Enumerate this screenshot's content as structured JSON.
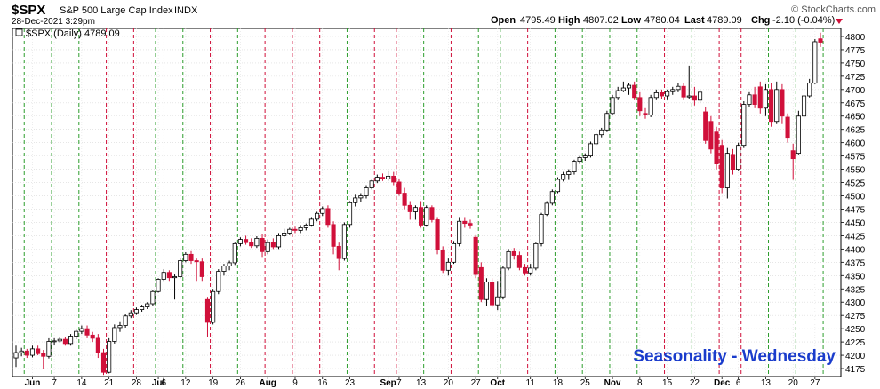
{
  "header": {
    "symbol": "$SPX",
    "name": "S&P 500 Large Cap Index",
    "exchange": "INDX",
    "date": "28-Dec-2021 3:29pm",
    "brand": "© StockCharts.com",
    "quote": {
      "open_label": "Open",
      "open": "4795.49",
      "high_label": "High",
      "high": "4807.02",
      "low_label": "Low",
      "low": "4780.04",
      "last_label": "Last",
      "last": "4789.09",
      "chg_label": "Chg",
      "chg": "-2.10 (-0.04%)"
    }
  },
  "legend": {
    "label": "$SPX (Daily) 4789.09"
  },
  "annotation": "Seasonality - Wednesday",
  "colors": {
    "down": "#d0103a",
    "up": "#ffffff",
    "green_line": "#2e9e2e",
    "red_line": "#d0103a",
    "annotation": "#1a3ccc"
  },
  "chart_data": {
    "type": "candlestick",
    "title": "$SPX S&P 500 Large Cap Index INDX",
    "ylim": [
      4160,
      4815
    ],
    "y_ticks": [
      4175,
      4200,
      4225,
      4250,
      4275,
      4300,
      4325,
      4350,
      4375,
      4400,
      4425,
      4450,
      4475,
      4500,
      4525,
      4550,
      4575,
      4600,
      4625,
      4650,
      4675,
      4700,
      4725,
      4750,
      4775,
      4800
    ],
    "x_tick_labels": [
      {
        "label": "Jun",
        "bar": 3,
        "bold": true
      },
      {
        "label": "7",
        "bar": 7
      },
      {
        "label": "14",
        "bar": 12
      },
      {
        "label": "21",
        "bar": 17
      },
      {
        "label": "28",
        "bar": 22
      },
      {
        "label": "Jul",
        "bar": 26,
        "bold": true
      },
      {
        "label": "6",
        "bar": 27
      },
      {
        "label": "12",
        "bar": 31
      },
      {
        "label": "19",
        "bar": 36
      },
      {
        "label": "26",
        "bar": 41
      },
      {
        "label": "Aug",
        "bar": 46,
        "bold": true
      },
      {
        "label": "9",
        "bar": 51
      },
      {
        "label": "16",
        "bar": 56
      },
      {
        "label": "23",
        "bar": 61
      },
      {
        "label": "Sep",
        "bar": 68,
        "bold": true
      },
      {
        "label": "7",
        "bar": 70
      },
      {
        "label": "13",
        "bar": 74
      },
      {
        "label": "20",
        "bar": 79
      },
      {
        "label": "27",
        "bar": 84
      },
      {
        "label": "Oct",
        "bar": 88,
        "bold": true
      },
      {
        "label": "11",
        "bar": 94
      },
      {
        "label": "18",
        "bar": 99
      },
      {
        "label": "25",
        "bar": 104
      },
      {
        "label": "Nov",
        "bar": 109,
        "bold": true
      },
      {
        "label": "8",
        "bar": 114
      },
      {
        "label": "15",
        "bar": 119
      },
      {
        "label": "22",
        "bar": 124
      },
      {
        "label": "Dec",
        "bar": 129,
        "bold": true
      },
      {
        "label": "6",
        "bar": 132
      },
      {
        "label": "13",
        "bar": 137
      },
      {
        "label": "20",
        "bar": 142
      },
      {
        "label": "27",
        "bar": 146
      }
    ],
    "wednesday_lines": [
      {
        "bar": 1,
        "color": "green"
      },
      {
        "bar": 6,
        "color": "green"
      },
      {
        "bar": 11,
        "color": "green"
      },
      {
        "bar": 16,
        "color": "red"
      },
      {
        "bar": 21,
        "color": "red"
      },
      {
        "bar": 25,
        "color": "green"
      },
      {
        "bar": 30,
        "color": "green"
      },
      {
        "bar": 35,
        "color": "red"
      },
      {
        "bar": 40,
        "color": "green"
      },
      {
        "bar": 45,
        "color": "red"
      },
      {
        "bar": 50,
        "color": "red"
      },
      {
        "bar": 55,
        "color": "red"
      },
      {
        "bar": 60,
        "color": "green"
      },
      {
        "bar": 65,
        "color": "red"
      },
      {
        "bar": 69,
        "color": "red"
      },
      {
        "bar": 74,
        "color": "green"
      },
      {
        "bar": 79,
        "color": "red"
      },
      {
        "bar": 84,
        "color": "green"
      },
      {
        "bar": 88,
        "color": "green"
      },
      {
        "bar": 93,
        "color": "red"
      },
      {
        "bar": 98,
        "color": "green"
      },
      {
        "bar": 103,
        "color": "green"
      },
      {
        "bar": 108,
        "color": "green"
      },
      {
        "bar": 113,
        "color": "green"
      },
      {
        "bar": 118,
        "color": "red"
      },
      {
        "bar": 123,
        "color": "green"
      },
      {
        "bar": 128,
        "color": "red"
      },
      {
        "bar": 132,
        "color": "red"
      },
      {
        "bar": 137,
        "color": "green"
      },
      {
        "bar": 142,
        "color": "green"
      },
      {
        "bar": 147,
        "color": "green"
      }
    ],
    "series": [
      {
        "o": 4195,
        "h": 4218,
        "l": 4178,
        "c": 4205
      },
      {
        "o": 4205,
        "h": 4214,
        "l": 4198,
        "c": 4208
      },
      {
        "o": 4208,
        "h": 4212,
        "l": 4195,
        "c": 4200
      },
      {
        "o": 4200,
        "h": 4218,
        "l": 4196,
        "c": 4212
      },
      {
        "o": 4212,
        "h": 4218,
        "l": 4200,
        "c": 4203
      },
      {
        "o": 4203,
        "h": 4210,
        "l": 4175,
        "c": 4198
      },
      {
        "o": 4198,
        "h": 4232,
        "l": 4194,
        "c": 4226
      },
      {
        "o": 4226,
        "h": 4232,
        "l": 4220,
        "c": 4227
      },
      {
        "o": 4227,
        "h": 4235,
        "l": 4224,
        "c": 4230
      },
      {
        "o": 4230,
        "h": 4234,
        "l": 4218,
        "c": 4222
      },
      {
        "o": 4222,
        "h": 4240,
        "l": 4218,
        "c": 4236
      },
      {
        "o": 4236,
        "h": 4248,
        "l": 4230,
        "c": 4245
      },
      {
        "o": 4245,
        "h": 4256,
        "l": 4240,
        "c": 4250
      },
      {
        "o": 4250,
        "h": 4256,
        "l": 4232,
        "c": 4238
      },
      {
        "o": 4238,
        "h": 4244,
        "l": 4225,
        "c": 4232
      },
      {
        "o": 4232,
        "h": 4240,
        "l": 4195,
        "c": 4205
      },
      {
        "o": 4205,
        "h": 4212,
        "l": 4163,
        "c": 4168
      },
      {
        "o": 4168,
        "h": 4232,
        "l": 4166,
        "c": 4226
      },
      {
        "o": 4226,
        "h": 4258,
        "l": 4222,
        "c": 4252
      },
      {
        "o": 4252,
        "h": 4264,
        "l": 4244,
        "c": 4256
      },
      {
        "o": 4256,
        "h": 4278,
        "l": 4252,
        "c": 4274
      },
      {
        "o": 4274,
        "h": 4285,
        "l": 4270,
        "c": 4280
      },
      {
        "o": 4280,
        "h": 4290,
        "l": 4276,
        "c": 4286
      },
      {
        "o": 4286,
        "h": 4295,
        "l": 4282,
        "c": 4291
      },
      {
        "o": 4291,
        "h": 4300,
        "l": 4287,
        "c": 4297
      },
      {
        "o": 4297,
        "h": 4322,
        "l": 4293,
        "c": 4320
      },
      {
        "o": 4320,
        "h": 4345,
        "l": 4318,
        "c": 4343
      },
      {
        "o": 4343,
        "h": 4362,
        "l": 4340,
        "c": 4356
      },
      {
        "o": 4356,
        "h": 4360,
        "l": 4340,
        "c": 4346
      },
      {
        "o": 4346,
        "h": 4352,
        "l": 4305,
        "c": 4348
      },
      {
        "o": 4348,
        "h": 4383,
        "l": 4345,
        "c": 4378
      },
      {
        "o": 4378,
        "h": 4394,
        "l": 4375,
        "c": 4390
      },
      {
        "o": 4390,
        "h": 4396,
        "l": 4372,
        "c": 4378
      },
      {
        "o": 4378,
        "h": 4382,
        "l": 4340,
        "c": 4376
      },
      {
        "o": 4376,
        "h": 4382,
        "l": 4340,
        "c": 4348
      },
      {
        "o": 4305,
        "h": 4310,
        "l": 4235,
        "c": 4262
      },
      {
        "o": 4262,
        "h": 4325,
        "l": 4258,
        "c": 4320
      },
      {
        "o": 4320,
        "h": 4362,
        "l": 4315,
        "c": 4358
      },
      {
        "o": 4358,
        "h": 4372,
        "l": 4350,
        "c": 4368
      },
      {
        "o": 4368,
        "h": 4378,
        "l": 4360,
        "c": 4374
      },
      {
        "o": 4374,
        "h": 4412,
        "l": 4370,
        "c": 4410
      },
      {
        "o": 4410,
        "h": 4422,
        "l": 4405,
        "c": 4418
      },
      {
        "o": 4418,
        "h": 4425,
        "l": 4408,
        "c": 4412
      },
      {
        "o": 4412,
        "h": 4420,
        "l": 4402,
        "c": 4406
      },
      {
        "o": 4406,
        "h": 4424,
        "l": 4402,
        "c": 4420
      },
      {
        "o": 4420,
        "h": 4428,
        "l": 4385,
        "c": 4395
      },
      {
        "o": 4395,
        "h": 4418,
        "l": 4390,
        "c": 4412
      },
      {
        "o": 4412,
        "h": 4420,
        "l": 4400,
        "c": 4404
      },
      {
        "o": 4404,
        "h": 4430,
        "l": 4400,
        "c": 4425
      },
      {
        "o": 4425,
        "h": 4438,
        "l": 4422,
        "c": 4430
      },
      {
        "o": 4430,
        "h": 4440,
        "l": 4426,
        "c": 4437
      },
      {
        "o": 4437,
        "h": 4442,
        "l": 4430,
        "c": 4435
      },
      {
        "o": 4435,
        "h": 4445,
        "l": 4430,
        "c": 4440
      },
      {
        "o": 4440,
        "h": 4448,
        "l": 4435,
        "c": 4445
      },
      {
        "o": 4445,
        "h": 4460,
        "l": 4442,
        "c": 4456
      },
      {
        "o": 4456,
        "h": 4470,
        "l": 4452,
        "c": 4467
      },
      {
        "o": 4467,
        "h": 4480,
        "l": 4462,
        "c": 4476
      },
      {
        "o": 4476,
        "h": 4482,
        "l": 4440,
        "c": 4446
      },
      {
        "o": 4446,
        "h": 4452,
        "l": 4390,
        "c": 4405
      },
      {
        "o": 4405,
        "h": 4412,
        "l": 4360,
        "c": 4382
      },
      {
        "o": 4382,
        "h": 4450,
        "l": 4378,
        "c": 4446
      },
      {
        "o": 4446,
        "h": 4490,
        "l": 4440,
        "c": 4487
      },
      {
        "o": 4487,
        "h": 4502,
        "l": 4480,
        "c": 4496
      },
      {
        "o": 4496,
        "h": 4505,
        "l": 4488,
        "c": 4500
      },
      {
        "o": 4500,
        "h": 4520,
        "l": 4495,
        "c": 4515
      },
      {
        "o": 4515,
        "h": 4530,
        "l": 4512,
        "c": 4528
      },
      {
        "o": 4528,
        "h": 4540,
        "l": 4524,
        "c": 4535
      },
      {
        "o": 4535,
        "h": 4542,
        "l": 4528,
        "c": 4532
      },
      {
        "o": 4532,
        "h": 4548,
        "l": 4528,
        "c": 4537
      },
      {
        "o": 4537,
        "h": 4545,
        "l": 4520,
        "c": 4526
      },
      {
        "o": 4526,
        "h": 4532,
        "l": 4500,
        "c": 4505
      },
      {
        "o": 4505,
        "h": 4515,
        "l": 4475,
        "c": 4482
      },
      {
        "o": 4482,
        "h": 4490,
        "l": 4455,
        "c": 4470
      },
      {
        "o": 4470,
        "h": 4482,
        "l": 4455,
        "c": 4478
      },
      {
        "o": 4478,
        "h": 4490,
        "l": 4440,
        "c": 4445
      },
      {
        "o": 4445,
        "h": 4482,
        "l": 4442,
        "c": 4478
      },
      {
        "o": 4478,
        "h": 4482,
        "l": 4450,
        "c": 4455
      },
      {
        "o": 4455,
        "h": 4460,
        "l": 4390,
        "c": 4398
      },
      {
        "o": 4398,
        "h": 4405,
        "l": 4355,
        "c": 4360
      },
      {
        "o": 4360,
        "h": 4382,
        "l": 4350,
        "c": 4375
      },
      {
        "o": 4375,
        "h": 4415,
        "l": 4372,
        "c": 4410
      },
      {
        "o": 4410,
        "h": 4460,
        "l": 4405,
        "c": 4452
      },
      {
        "o": 4452,
        "h": 4460,
        "l": 4440,
        "c": 4448
      },
      {
        "o": 4448,
        "h": 4455,
        "l": 4438,
        "c": 4445
      },
      {
        "o": 4422,
        "h": 4426,
        "l": 4345,
        "c": 4352
      },
      {
        "o": 4365,
        "h": 4375,
        "l": 4300,
        "c": 4305
      },
      {
        "o": 4305,
        "h": 4345,
        "l": 4292,
        "c": 4338
      },
      {
        "o": 4338,
        "h": 4345,
        "l": 4290,
        "c": 4295
      },
      {
        "o": 4295,
        "h": 4340,
        "l": 4285,
        "c": 4310
      },
      {
        "o": 4310,
        "h": 4368,
        "l": 4305,
        "c": 4364
      },
      {
        "o": 4364,
        "h": 4400,
        "l": 4360,
        "c": 4395
      },
      {
        "o": 4395,
        "h": 4402,
        "l": 4380,
        "c": 4388
      },
      {
        "o": 4388,
        "h": 4395,
        "l": 4360,
        "c": 4365
      },
      {
        "o": 4365,
        "h": 4372,
        "l": 4350,
        "c": 4355
      },
      {
        "o": 4355,
        "h": 4372,
        "l": 4350,
        "c": 4364
      },
      {
        "o": 4364,
        "h": 4412,
        "l": 4360,
        "c": 4410
      },
      {
        "o": 4410,
        "h": 4468,
        "l": 4405,
        "c": 4465
      },
      {
        "o": 4465,
        "h": 4490,
        "l": 4462,
        "c": 4486
      },
      {
        "o": 4486,
        "h": 4512,
        "l": 4482,
        "c": 4508
      },
      {
        "o": 4508,
        "h": 4535,
        "l": 4505,
        "c": 4531
      },
      {
        "o": 4531,
        "h": 4545,
        "l": 4527,
        "c": 4540
      },
      {
        "o": 4540,
        "h": 4550,
        "l": 4530,
        "c": 4545
      },
      {
        "o": 4545,
        "h": 4568,
        "l": 4540,
        "c": 4565
      },
      {
        "o": 4565,
        "h": 4575,
        "l": 4560,
        "c": 4572
      },
      {
        "o": 4572,
        "h": 4580,
        "l": 4566,
        "c": 4575
      },
      {
        "o": 4575,
        "h": 4602,
        "l": 4572,
        "c": 4598
      },
      {
        "o": 4598,
        "h": 4618,
        "l": 4595,
        "c": 4615
      },
      {
        "o": 4615,
        "h": 4628,
        "l": 4610,
        "c": 4624
      },
      {
        "o": 4624,
        "h": 4660,
        "l": 4620,
        "c": 4655
      },
      {
        "o": 4655,
        "h": 4690,
        "l": 4652,
        "c": 4685
      },
      {
        "o": 4685,
        "h": 4705,
        "l": 4680,
        "c": 4698
      },
      {
        "o": 4698,
        "h": 4715,
        "l": 4695,
        "c": 4703
      },
      {
        "o": 4703,
        "h": 4712,
        "l": 4690,
        "c": 4708
      },
      {
        "o": 4708,
        "h": 4715,
        "l": 4680,
        "c": 4685
      },
      {
        "o": 4685,
        "h": 4695,
        "l": 4650,
        "c": 4660
      },
      {
        "o": 4655,
        "h": 4665,
        "l": 4645,
        "c": 4652
      },
      {
        "o": 4652,
        "h": 4690,
        "l": 4648,
        "c": 4685
      },
      {
        "o": 4685,
        "h": 4700,
        "l": 4680,
        "c": 4694
      },
      {
        "o": 4694,
        "h": 4700,
        "l": 4682,
        "c": 4688
      },
      {
        "o": 4688,
        "h": 4700,
        "l": 4680,
        "c": 4696
      },
      {
        "o": 4696,
        "h": 4705,
        "l": 4690,
        "c": 4700
      },
      {
        "o": 4700,
        "h": 4712,
        "l": 4695,
        "c": 4706
      },
      {
        "o": 4706,
        "h": 4712,
        "l": 4680,
        "c": 4686
      },
      {
        "o": 4686,
        "h": 4745,
        "l": 4682,
        "c": 4688
      },
      {
        "o": 4688,
        "h": 4705,
        "l": 4670,
        "c": 4680
      },
      {
        "o": 4680,
        "h": 4700,
        "l": 4675,
        "c": 4695
      },
      {
        "o": 4658,
        "h": 4668,
        "l": 4598,
        "c": 4604
      },
      {
        "o": 4640,
        "h": 4650,
        "l": 4580,
        "c": 4588
      },
      {
        "o": 4620,
        "h": 4630,
        "l": 4550,
        "c": 4560
      },
      {
        "o": 4595,
        "h": 4605,
        "l": 4505,
        "c": 4515
      },
      {
        "o": 4515,
        "h": 4590,
        "l": 4495,
        "c": 4580
      },
      {
        "o": 4578,
        "h": 4588,
        "l": 4540,
        "c": 4550
      },
      {
        "o": 4550,
        "h": 4600,
        "l": 4548,
        "c": 4595
      },
      {
        "o": 4595,
        "h": 4678,
        "l": 4590,
        "c": 4672
      },
      {
        "o": 4672,
        "h": 4695,
        "l": 4668,
        "c": 4690
      },
      {
        "o": 4690,
        "h": 4705,
        "l": 4665,
        "c": 4672
      },
      {
        "o": 4705,
        "h": 4715,
        "l": 4655,
        "c": 4665
      },
      {
        "o": 4665,
        "h": 4710,
        "l": 4650,
        "c": 4700
      },
      {
        "o": 4700,
        "h": 4712,
        "l": 4630,
        "c": 4640
      },
      {
        "o": 4640,
        "h": 4715,
        "l": 4635,
        "c": 4700
      },
      {
        "o": 4700,
        "h": 4710,
        "l": 4635,
        "c": 4650
      },
      {
        "o": 4648,
        "h": 4655,
        "l": 4600,
        "c": 4610
      },
      {
        "o": 4585,
        "h": 4598,
        "l": 4530,
        "c": 4570
      },
      {
        "o": 4580,
        "h": 4660,
        "l": 4578,
        "c": 4650
      },
      {
        "o": 4650,
        "h": 4690,
        "l": 4645,
        "c": 4688
      },
      {
        "o": 4688,
        "h": 4720,
        "l": 4685,
        "c": 4712
      },
      {
        "o": 4712,
        "h": 4795,
        "l": 4710,
        "c": 4790
      },
      {
        "o": 4795.49,
        "h": 4807.02,
        "l": 4780.04,
        "c": 4789.09
      }
    ]
  }
}
